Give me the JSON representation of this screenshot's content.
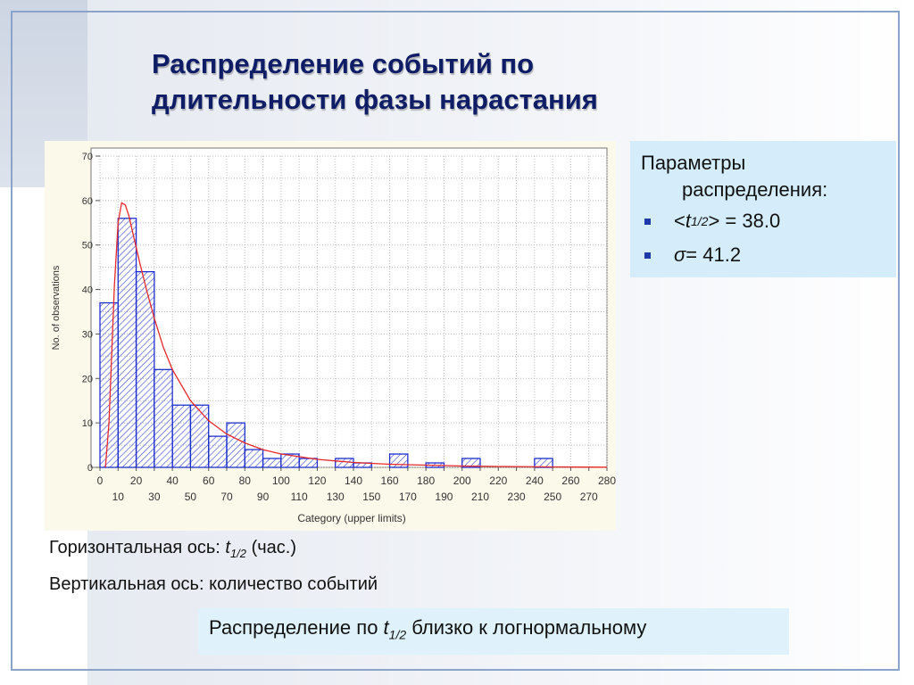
{
  "slide": {
    "title_line1": "Распределение событий по",
    "title_line2": "длительности фазы нарастания"
  },
  "params": {
    "heading_line1": "Параметры",
    "heading_line2": "распределения:",
    "items": [
      {
        "prefix": "<",
        "symbol": "t",
        "sub": "1/2",
        "suffix": "> = 38.0"
      },
      {
        "prefix": "",
        "symbol": "σ",
        "sub": "",
        "suffix": " = 41.2"
      }
    ]
  },
  "captions": {
    "x_axis_prefix": "Горизонтальная ось: ",
    "x_axis_symbol": "t",
    "x_axis_sub": "1/2",
    "x_axis_suffix": " (час.)",
    "y_axis": "Вертикальная ось: количество событий"
  },
  "conclusion": {
    "prefix": "Распределение по ",
    "symbol": "t",
    "sub": "1/2",
    "suffix": " близко к логнормальному"
  },
  "colors": {
    "bar_stroke": "#1f2fcf",
    "curve": "#e8282a",
    "title": "#0f1d66",
    "bullet": "#1f3aa8"
  },
  "chart_data": {
    "type": "bar",
    "title": "",
    "xlabel": "Category (upper limits)",
    "ylabel": "No. of observations",
    "xlim": [
      0,
      280
    ],
    "ylim": [
      0,
      70
    ],
    "y_ticks": [
      0,
      10,
      20,
      30,
      40,
      50,
      60,
      70
    ],
    "x_ticks_top": [
      0,
      20,
      40,
      60,
      80,
      100,
      120,
      140,
      160,
      180,
      200,
      220,
      240,
      260,
      280
    ],
    "x_ticks_bottom": [
      10,
      30,
      50,
      70,
      90,
      110,
      130,
      150,
      170,
      190,
      210,
      230,
      250,
      270
    ],
    "bin_width": 10,
    "upper_limits": [
      10,
      20,
      30,
      40,
      50,
      60,
      70,
      80,
      90,
      100,
      110,
      120,
      130,
      140,
      150,
      160,
      170,
      180,
      190,
      200,
      210,
      220,
      230,
      240,
      250,
      260,
      270,
      280
    ],
    "values": [
      37,
      56,
      44,
      22,
      14,
      14,
      7,
      10,
      4,
      2,
      3,
      2,
      0,
      2,
      1,
      0,
      3,
      0,
      1,
      0,
      2,
      0,
      0,
      0,
      2,
      0,
      0,
      0
    ],
    "grid": true,
    "fit_curve": {
      "type": "lognormal",
      "x": [
        3,
        5,
        8,
        10,
        12,
        14,
        16,
        18,
        22,
        26,
        30,
        35,
        40,
        50,
        60,
        70,
        80,
        90,
        100,
        120,
        140,
        160,
        180,
        200,
        220,
        250,
        280
      ],
      "y": [
        0,
        10,
        41,
        55,
        59.5,
        59,
        56.5,
        53,
        46,
        39.5,
        33.5,
        27,
        22,
        15,
        10.5,
        7.5,
        5.5,
        4,
        3,
        1.8,
        1.1,
        0.7,
        0.5,
        0.3,
        0.2,
        0.1,
        0.05
      ]
    }
  }
}
